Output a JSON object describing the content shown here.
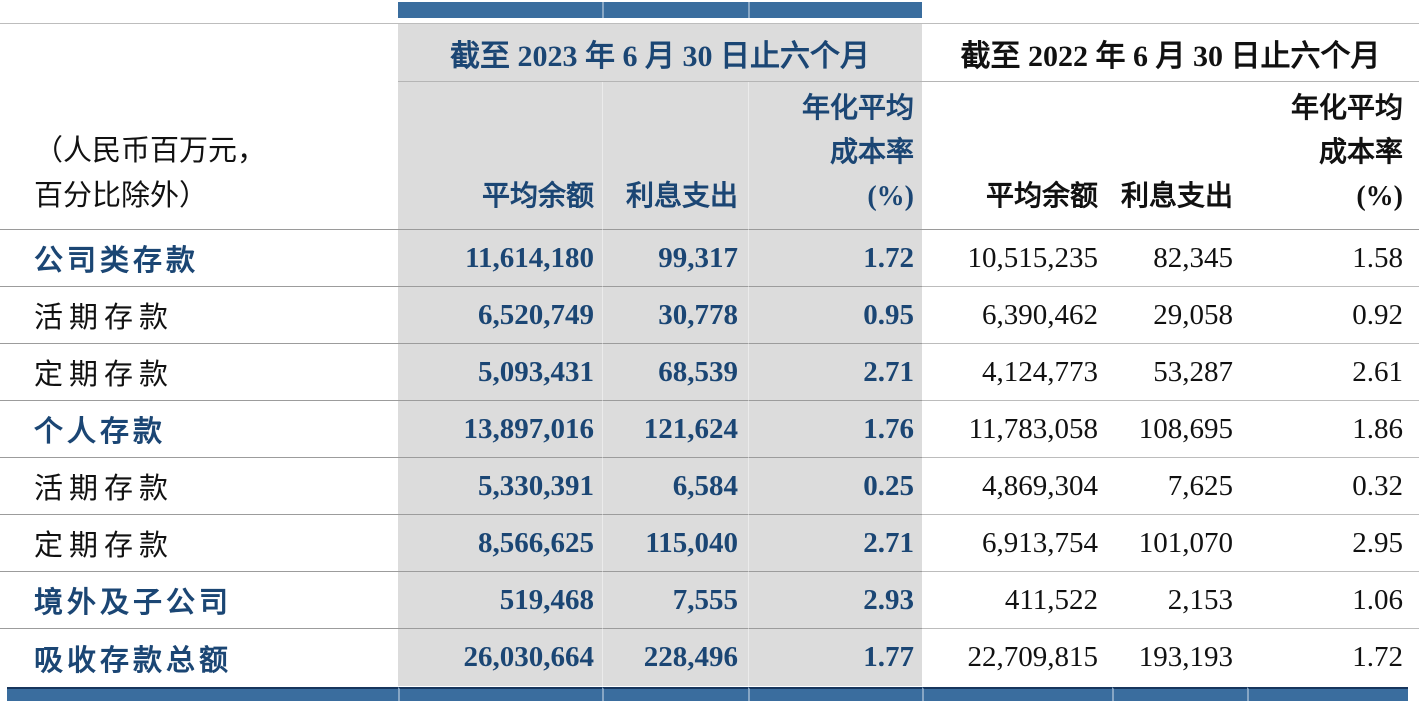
{
  "table": {
    "unit_note_lines": [
      "（人民币百万元，",
      "百分比除外）"
    ],
    "periods": [
      {
        "title": "截至 2023 年 6 月 30 日止六个月"
      },
      {
        "title": "截至 2022 年 6 月 30 日止六个月"
      }
    ],
    "column_headers": {
      "avg_balance": "平均余额",
      "interest_expense": "利息支出",
      "cost_rate_lines": [
        "年化平均",
        "成本率",
        "(%)"
      ]
    },
    "rows": [
      {
        "label": "公司类存款",
        "emphasis": true,
        "y2023": {
          "avg_balance": "11,614,180",
          "interest_expense": "99,317",
          "cost_rate": "1.72"
        },
        "y2022": {
          "avg_balance": "10,515,235",
          "interest_expense": "82,345",
          "cost_rate": "1.58"
        }
      },
      {
        "label": "活期存款",
        "emphasis": false,
        "y2023": {
          "avg_balance": "6,520,749",
          "interest_expense": "30,778",
          "cost_rate": "0.95"
        },
        "y2022": {
          "avg_balance": "6,390,462",
          "interest_expense": "29,058",
          "cost_rate": "0.92"
        }
      },
      {
        "label": "定期存款",
        "emphasis": false,
        "y2023": {
          "avg_balance": "5,093,431",
          "interest_expense": "68,539",
          "cost_rate": "2.71"
        },
        "y2022": {
          "avg_balance": "4,124,773",
          "interest_expense": "53,287",
          "cost_rate": "2.61"
        }
      },
      {
        "label": "个人存款",
        "emphasis": true,
        "y2023": {
          "avg_balance": "13,897,016",
          "interest_expense": "121,624",
          "cost_rate": "1.76"
        },
        "y2022": {
          "avg_balance": "11,783,058",
          "interest_expense": "108,695",
          "cost_rate": "1.86"
        }
      },
      {
        "label": "活期存款",
        "emphasis": false,
        "y2023": {
          "avg_balance": "5,330,391",
          "interest_expense": "6,584",
          "cost_rate": "0.25"
        },
        "y2022": {
          "avg_balance": "4,869,304",
          "interest_expense": "7,625",
          "cost_rate": "0.32"
        }
      },
      {
        "label": "定期存款",
        "emphasis": false,
        "y2023": {
          "avg_balance": "8,566,625",
          "interest_expense": "115,040",
          "cost_rate": "2.71"
        },
        "y2022": {
          "avg_balance": "6,913,754",
          "interest_expense": "101,070",
          "cost_rate": "2.95"
        }
      },
      {
        "label": "境外及子公司",
        "emphasis": true,
        "y2023": {
          "avg_balance": "519,468",
          "interest_expense": "7,555",
          "cost_rate": "2.93"
        },
        "y2022": {
          "avg_balance": "411,522",
          "interest_expense": "2,153",
          "cost_rate": "1.06"
        }
      },
      {
        "label": "吸收存款总额",
        "emphasis": true,
        "y2023": {
          "avg_balance": "26,030,664",
          "interest_expense": "228,496",
          "cost_rate": "1.77"
        },
        "y2022": {
          "avg_balance": "22,709,815",
          "interest_expense": "193,193",
          "cost_rate": "1.72"
        }
      }
    ]
  },
  "colors": {
    "accent_bar": "#3a6d9e",
    "accent_bar_edge": "#17365d",
    "accent_text": "#1b4674",
    "column_shade": "#dcdcdc",
    "body_text": "#111111"
  }
}
